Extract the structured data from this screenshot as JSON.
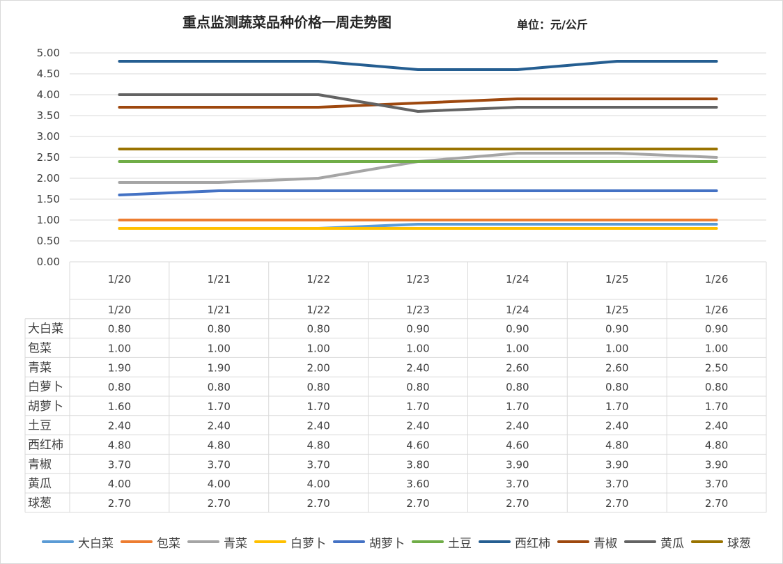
{
  "chart_data": {
    "type": "line",
    "title": "重点监测蔬菜品种价格一周走势图",
    "unit": "单位：元/公斤",
    "categories": [
      "1/20",
      "1/21",
      "1/22",
      "1/23",
      "1/24",
      "1/25",
      "1/26"
    ],
    "ylim": [
      0,
      5
    ],
    "yticks": [
      "0.00",
      "0.50",
      "1.00",
      "1.50",
      "2.00",
      "2.50",
      "3.00",
      "3.50",
      "4.00",
      "4.50",
      "5.00"
    ],
    "grid": true,
    "legend_position": "bottom",
    "series": [
      {
        "name": "大白菜",
        "color": "#5b9bd5",
        "values": [
          0.8,
          0.8,
          0.8,
          0.9,
          0.9,
          0.9,
          0.9
        ],
        "labels": [
          "0.80",
          "0.80",
          "0.80",
          "0.90",
          "0.90",
          "0.90",
          "0.90"
        ]
      },
      {
        "name": "包菜",
        "color": "#ed7d31",
        "values": [
          1.0,
          1.0,
          1.0,
          1.0,
          1.0,
          1.0,
          1.0
        ],
        "labels": [
          "1.00",
          "1.00",
          "1.00",
          "1.00",
          "1.00",
          "1.00",
          "1.00"
        ]
      },
      {
        "name": "青菜",
        "color": "#a5a5a5",
        "values": [
          1.9,
          1.9,
          2.0,
          2.4,
          2.6,
          2.6,
          2.5
        ],
        "labels": [
          "1.90",
          "1.90",
          "2.00",
          "2.40",
          "2.60",
          "2.60",
          "2.50"
        ]
      },
      {
        "name": "白萝卜",
        "color": "#ffc000",
        "values": [
          0.8,
          0.8,
          0.8,
          0.8,
          0.8,
          0.8,
          0.8
        ],
        "labels": [
          "0.80",
          "0.80",
          "0.80",
          "0.80",
          "0.80",
          "0.80",
          "0.80"
        ]
      },
      {
        "name": "胡萝卜",
        "color": "#4472c4",
        "values": [
          1.6,
          1.7,
          1.7,
          1.7,
          1.7,
          1.7,
          1.7
        ],
        "labels": [
          "1.60",
          "1.70",
          "1.70",
          "1.70",
          "1.70",
          "1.70",
          "1.70"
        ]
      },
      {
        "name": "土豆",
        "color": "#70ad47",
        "values": [
          2.4,
          2.4,
          2.4,
          2.4,
          2.4,
          2.4,
          2.4
        ],
        "labels": [
          "2.40",
          "2.40",
          "2.40",
          "2.40",
          "2.40",
          "2.40",
          "2.40"
        ]
      },
      {
        "name": "西红柿",
        "color": "#255e91",
        "values": [
          4.8,
          4.8,
          4.8,
          4.6,
          4.6,
          4.8,
          4.8
        ],
        "labels": [
          "4.80",
          "4.80",
          "4.80",
          "4.60",
          "4.60",
          "4.80",
          "4.80"
        ]
      },
      {
        "name": "青椒",
        "color": "#9e480e",
        "values": [
          3.7,
          3.7,
          3.7,
          3.8,
          3.9,
          3.9,
          3.9
        ],
        "labels": [
          "3.70",
          "3.70",
          "3.70",
          "3.80",
          "3.90",
          "3.90",
          "3.90"
        ]
      },
      {
        "name": "黄瓜",
        "color": "#636363",
        "values": [
          4.0,
          4.0,
          4.0,
          3.6,
          3.7,
          3.7,
          3.7
        ],
        "labels": [
          "4.00",
          "4.00",
          "4.00",
          "3.60",
          "3.70",
          "3.70",
          "3.70"
        ]
      },
      {
        "name": "球葱",
        "color": "#997300",
        "values": [
          2.7,
          2.7,
          2.7,
          2.7,
          2.7,
          2.7,
          2.7
        ],
        "labels": [
          "2.70",
          "2.70",
          "2.70",
          "2.70",
          "2.70",
          "2.70",
          "2.70"
        ]
      }
    ]
  }
}
